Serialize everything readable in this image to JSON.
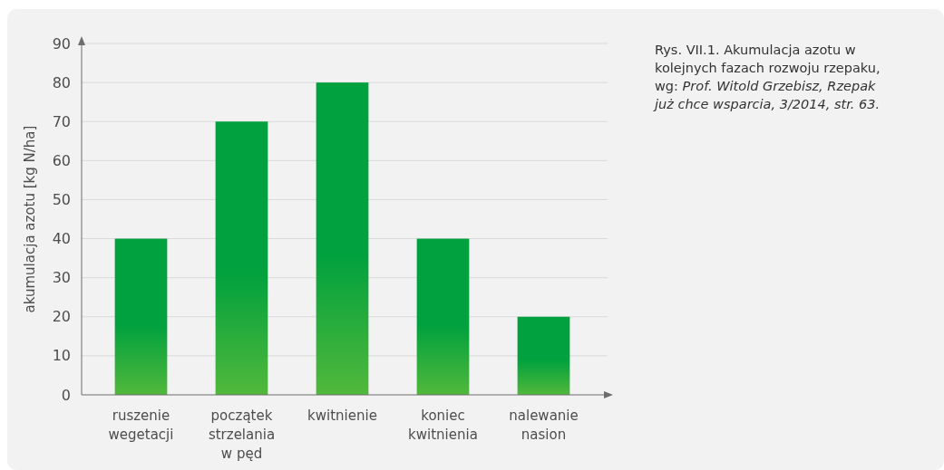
{
  "chart_data": {
    "type": "bar",
    "ylabel": "akumulacja azotu [kg N/ha]",
    "categories": [
      "ruszenie wegetacji",
      "początek strzelania w pęd",
      "kwitnienie",
      "koniec kwitnienia",
      "nalewanie nasion"
    ],
    "values": [
      40,
      70,
      80,
      40,
      20
    ],
    "color": "#00a13e",
    "ylim": [
      0,
      90
    ],
    "yticks": [
      0,
      10,
      20,
      30,
      40,
      50,
      60,
      70,
      80,
      90
    ],
    "grid": "y",
    "annotations": [
      "Rys. VII.1. Akumulacja azotu w kolejnych fazach rozwoju rzepaku, wg:",
      "Prof. Witold Grzebisz, Rzepak już chce wsparcia, 3/2014, str. 63."
    ]
  }
}
